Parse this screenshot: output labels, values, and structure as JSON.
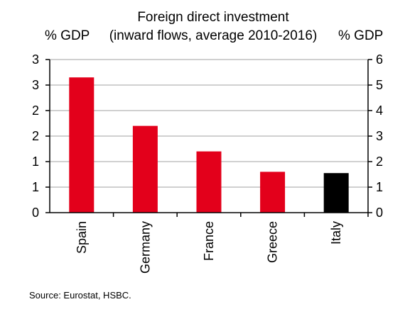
{
  "chart_data": {
    "type": "bar",
    "title": [
      "Foreign direct investment",
      "(inward flows, average 2010-2016)"
    ],
    "ylabel_left": "% GDP",
    "ylabel_right": "% GDP",
    "categories": [
      "Spain",
      "Germany",
      "France",
      "Greece",
      "Italy"
    ],
    "values": [
      5.3,
      3.4,
      2.4,
      1.6,
      1.55
    ],
    "bar_colors": [
      "#e3001b",
      "#e3001b",
      "#e3001b",
      "#e3001b",
      "#000000"
    ],
    "ylim": [
      0,
      6
    ],
    "right_ticks": [
      "0",
      "1",
      "2",
      "3",
      "4",
      "5",
      "6"
    ],
    "left_ticks": [
      "0",
      "1",
      "1",
      "2",
      "2",
      "3",
      "3"
    ],
    "grid": true,
    "source": "Source: Eurostat, HSBC."
  }
}
